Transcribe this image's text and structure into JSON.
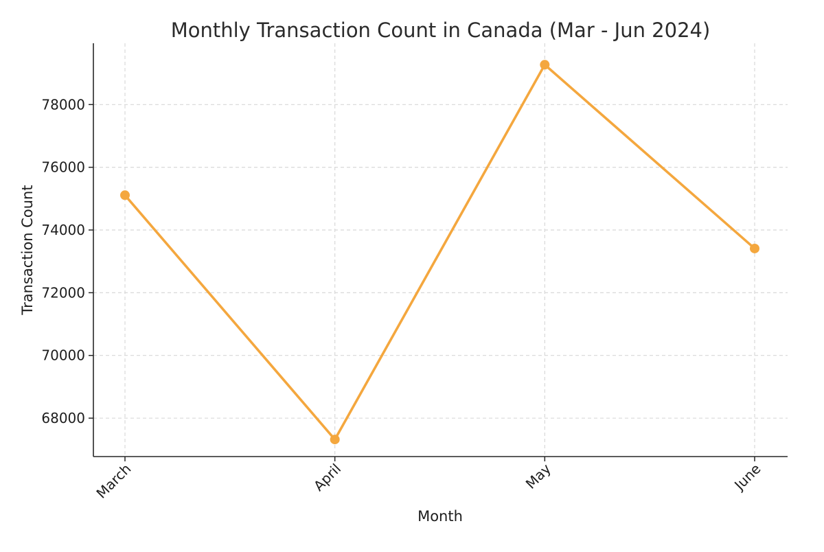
{
  "chart_data": {
    "type": "line",
    "title": "Monthly Transaction Count in Canada (Mar - Jun 2024)",
    "xlabel": "Month",
    "ylabel": "Transaction Count",
    "categories": [
      "March",
      "April",
      "May",
      "June"
    ],
    "series": [
      {
        "name": "Transaction Count",
        "values": [
          75110,
          67320,
          79270,
          73410
        ],
        "color": "#F4A73E",
        "marker": "circle"
      }
    ],
    "yticks": [
      68000,
      70000,
      72000,
      74000,
      76000,
      78000
    ],
    "ylim": [
      66775,
      79955
    ],
    "grid": true,
    "grid_style": "dashed",
    "grid_color": "#d8d8d8",
    "axis_color": "#262626",
    "text_color": "#1c1c1c",
    "background": "#ffffff",
    "legend_position": "none"
  }
}
